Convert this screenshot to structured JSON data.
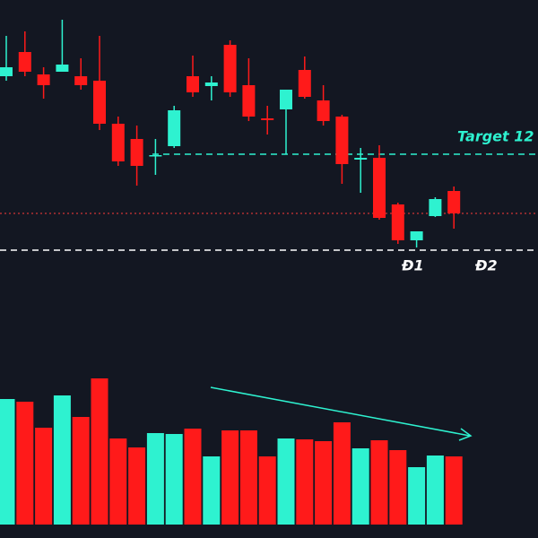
{
  "chart_data": {
    "type": "candlestick",
    "open": [
      215,
      242,
      217,
      220,
      215,
      210,
      162,
      145,
      126,
      137,
      215,
      204,
      250,
      205,
      168,
      178,
      222,
      188,
      170,
      122,
      124,
      72,
      32,
      59,
      87
    ],
    "high": [
      260,
      265,
      225,
      278,
      235,
      260,
      170,
      160,
      145,
      182,
      238,
      215,
      255,
      235,
      182,
      200,
      237,
      205,
      172,
      135,
      138,
      74,
      42,
      80,
      92
    ],
    "low": [
      210,
      215,
      190,
      220,
      200,
      155,
      115,
      93,
      105,
      135,
      192,
      188,
      192,
      165,
      150,
      128,
      190,
      160,
      95,
      85,
      55,
      28,
      24,
      58,
      45
    ],
    "close": [
      225,
      220,
      205,
      228,
      205,
      162,
      120,
      115,
      127,
      177,
      197,
      208,
      197,
      170,
      166,
      200,
      192,
      165,
      117,
      124,
      57,
      32,
      42,
      78,
      62
    ],
    "ylim": [
      0,
      300
    ],
    "up_color": "#2ef2d0",
    "down_color": "#ff1a1a",
    "volume": {
      "values": [
        140,
        137,
        108,
        144,
        120,
        163,
        96,
        86,
        102,
        101,
        107,
        76,
        105,
        105,
        76,
        96,
        95,
        93,
        114,
        85,
        94,
        83,
        64,
        77,
        76
      ],
      "ylim": [
        0,
        200
      ]
    },
    "levels": [
      {
        "value": 128,
        "label": "Target 12",
        "color": "#2ef2d0",
        "style": "dashed"
      },
      {
        "value": 62,
        "color": "#ff3b3b",
        "style": "dotted"
      },
      {
        "value": 21,
        "color": "#ffffff",
        "style": "dashed"
      }
    ],
    "annotations": [
      "Đ1",
      "Đ2"
    ]
  }
}
